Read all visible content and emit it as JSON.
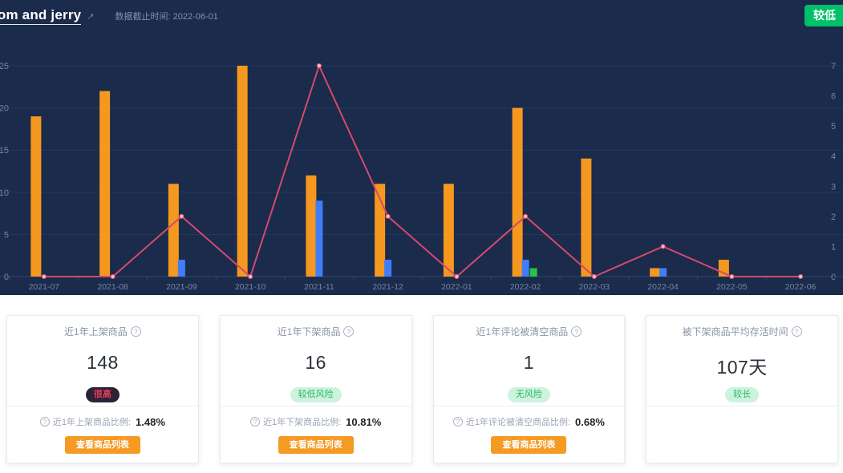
{
  "header": {
    "store_name": "tom and jerry",
    "data_cutoff": "数据截止时间: 2022-06-01",
    "risk_badge": "较低",
    "risk_badge_color": "#00c16a"
  },
  "chart_data": {
    "type": "bar",
    "categories": [
      "2021-07",
      "2021-08",
      "2021-09",
      "2021-10",
      "2021-11",
      "2021-12",
      "2022-01",
      "2022-02",
      "2022-03",
      "2022-04",
      "2022-05",
      "2022-06"
    ],
    "series": [
      {
        "name": "orange-bars",
        "type": "bar",
        "color": "#f5981f",
        "axis": "left",
        "values": [
          19,
          22,
          11,
          25,
          12,
          11,
          11,
          20,
          14,
          1,
          2,
          0
        ]
      },
      {
        "name": "blue-bars",
        "type": "bar",
        "color": "#3f7ef7",
        "axis": "left",
        "values": [
          0,
          0,
          2,
          0,
          9,
          2,
          0,
          2,
          0,
          1,
          0,
          0
        ]
      },
      {
        "name": "green-bars",
        "type": "bar",
        "color": "#27c346",
        "axis": "left",
        "values": [
          0,
          0,
          0,
          0,
          0,
          0,
          0,
          1,
          0,
          0,
          0,
          0
        ]
      },
      {
        "name": "pink-line",
        "type": "line",
        "color": "#d6496d",
        "axis": "right",
        "values": [
          0,
          0,
          2,
          0,
          7,
          2,
          0,
          2,
          0,
          1,
          0,
          0
        ]
      }
    ],
    "title": "",
    "xlabel": "",
    "ylabel_left": "",
    "ylabel_right": "",
    "left_axis": {
      "min": 0,
      "max": 25,
      "ticks": [
        25,
        20,
        15,
        10,
        5,
        0
      ]
    },
    "right_axis": {
      "min": 0,
      "max": 7,
      "ticks": [
        7,
        6,
        5,
        4,
        3,
        2,
        1,
        0
      ]
    },
    "grid": true,
    "legend": "none"
  },
  "cards": [
    {
      "title": "近1年上架商品",
      "value": "148",
      "badge": "很高",
      "ratio_label": "近1年上架商品比例:",
      "ratio_value": "1.48%",
      "button": "查看商品列表"
    },
    {
      "title": "近1年下架商品",
      "value": "16",
      "badge": "较低风险",
      "ratio_label": "近1年下架商品比例:",
      "ratio_value": "10.81%",
      "button": "查看商品列表"
    },
    {
      "title": "近1年评论被清空商品",
      "value": "1",
      "badge": "无风险",
      "ratio_label": "近1年评论被清空商品比例:",
      "ratio_value": "0.68%",
      "button": "查看商品列表"
    },
    {
      "title": "被下架商品平均存活时间",
      "value": "107天",
      "badge": "较长",
      "ratio_label": "",
      "ratio_value": "",
      "button": ""
    }
  ]
}
